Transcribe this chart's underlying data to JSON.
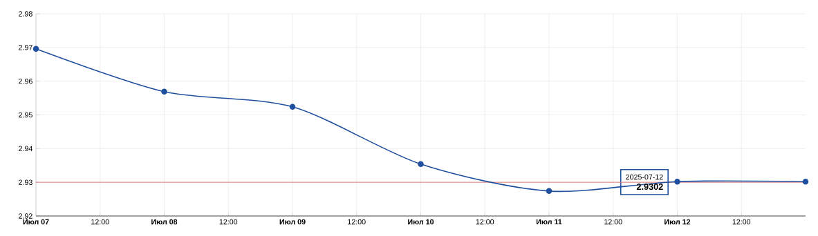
{
  "chart_data": {
    "type": "line",
    "x": [
      "2025-07-07",
      "2025-07-08",
      "2025-07-09",
      "2025-07-10",
      "2025-07-11",
      "2025-07-12",
      "2025-07-13"
    ],
    "values": [
      2.9696,
      2.9569,
      2.9524,
      2.9354,
      2.9274,
      2.9302,
      2.9302
    ],
    "color": "#1f4f9e",
    "marker": "circle",
    "line_style": "solid",
    "xlim": [
      "2025-07-07",
      "2025-07-13"
    ],
    "xticks": [
      {
        "value": "2025-07-07",
        "label": "Июл 07"
      },
      {
        "value": "2025-07-07T12:00",
        "label": "12:00"
      },
      {
        "value": "2025-07-08",
        "label": "Июл 08"
      },
      {
        "value": "2025-07-08T12:00",
        "label": "12:00"
      },
      {
        "value": "2025-07-09",
        "label": "Июл 09"
      },
      {
        "value": "2025-07-09T12:00",
        "label": "12:00"
      },
      {
        "value": "2025-07-10",
        "label": "Июл 10"
      },
      {
        "value": "2025-07-10T12:00",
        "label": "12:00"
      },
      {
        "value": "2025-07-11",
        "label": "Июл 11"
      },
      {
        "value": "2025-07-11T12:00",
        "label": "12:00"
      },
      {
        "value": "2025-07-12",
        "label": "Июл 12"
      },
      {
        "value": "2025-07-12T12:00",
        "label": "12:00"
      }
    ],
    "ylim": [
      2.92,
      2.98
    ],
    "yticks": [
      2.92,
      2.93,
      2.94,
      2.95,
      2.96,
      2.97,
      2.98
    ],
    "grid": true,
    "ref_lines": [
      {
        "axis": "y",
        "value": 2.93,
        "color": "#e06060"
      }
    ],
    "annotations": [
      {
        "text": "2025-07-12",
        "x": "2025-07-12",
        "y": 2.9302
      },
      {
        "text": "2.9302",
        "x": "2025-07-12",
        "y": 2.9302
      }
    ]
  }
}
